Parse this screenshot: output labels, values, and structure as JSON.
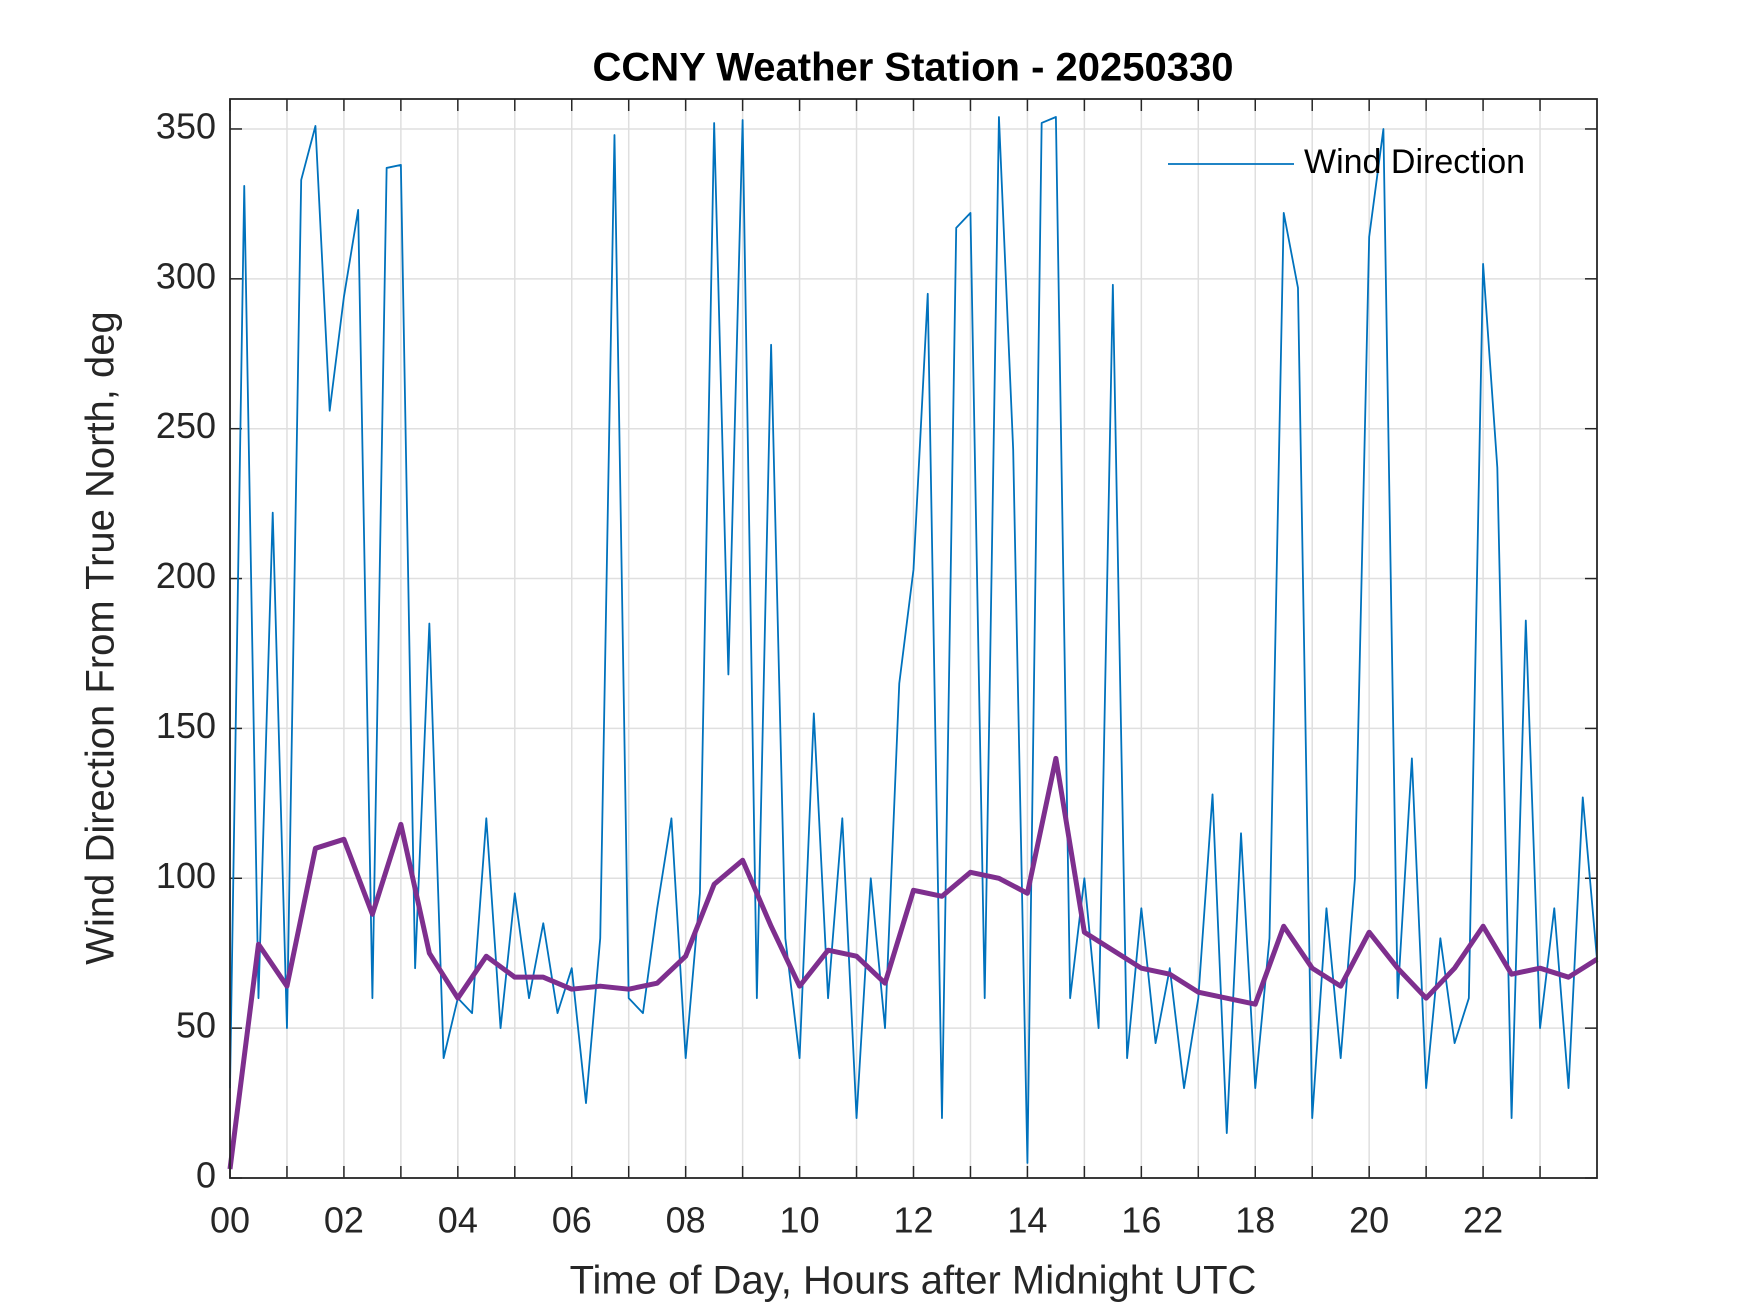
{
  "chart_data": {
    "type": "line",
    "title": "CCNY Weather Station - 20250330",
    "xlabel": "Time of Day, Hours after Midnight UTC",
    "ylabel": "Wind Direction From True North, deg",
    "xlim": [
      0,
      24
    ],
    "ylim": [
      0,
      360
    ],
    "xticks": [
      {
        "value": 0,
        "label": "00"
      },
      {
        "value": 2,
        "label": "02"
      },
      {
        "value": 4,
        "label": "04"
      },
      {
        "value": 6,
        "label": "06"
      },
      {
        "value": 8,
        "label": "08"
      },
      {
        "value": 10,
        "label": "10"
      },
      {
        "value": 12,
        "label": "12"
      },
      {
        "value": 14,
        "label": "14"
      },
      {
        "value": 16,
        "label": "16"
      },
      {
        "value": 18,
        "label": "18"
      },
      {
        "value": 20,
        "label": "20"
      },
      {
        "value": 22,
        "label": "22"
      }
    ],
    "xminorticks": [
      1,
      3,
      5,
      7,
      9,
      11,
      13,
      15,
      17,
      19,
      21,
      23
    ],
    "yticks": [
      0,
      50,
      100,
      150,
      200,
      250,
      300,
      350
    ],
    "grid": true,
    "legend": "northeast",
    "series": [
      {
        "name": "Wind Direction",
        "color": "#0072BD",
        "x": [
          0,
          0.25,
          0.5,
          0.75,
          1,
          1.25,
          1.5,
          1.75,
          2,
          2.25,
          2.5,
          2.75,
          3,
          3.25,
          3.5,
          3.75,
          4,
          4.25,
          4.5,
          4.75,
          5,
          5.25,
          5.5,
          5.75,
          6,
          6.25,
          6.5,
          6.75,
          7,
          7.25,
          7.5,
          7.75,
          8,
          8.25,
          8.5,
          8.75,
          9,
          9.25,
          9.5,
          9.75,
          10,
          10.25,
          10.5,
          10.75,
          11,
          11.25,
          11.5,
          11.75,
          12,
          12.25,
          12.5,
          12.75,
          13,
          13.25,
          13.5,
          13.75,
          14,
          14.25,
          14.5,
          14.75,
          15,
          15.25,
          15.5,
          15.75,
          16,
          16.25,
          16.5,
          16.75,
          17,
          17.25,
          17.5,
          17.75,
          18,
          18.25,
          18.5,
          18.75,
          19,
          19.25,
          19.5,
          19.75,
          20,
          20.25,
          20.5,
          20.75,
          21,
          21.25,
          21.5,
          21.75,
          22,
          22.25,
          22.5,
          22.75,
          23,
          23.25,
          23.5,
          23.75,
          24
        ],
        "values": [
          30,
          331,
          60,
          222,
          50,
          333,
          351,
          256,
          294,
          323,
          60,
          337,
          338,
          70,
          185,
          40,
          60,
          55,
          120,
          50,
          95,
          60,
          85,
          55,
          70,
          25,
          80,
          348,
          60,
          55,
          90,
          120,
          40,
          95,
          352,
          168,
          353,
          60,
          278,
          80,
          40,
          155,
          60,
          120,
          20,
          100,
          50,
          165,
          203,
          295,
          20,
          317,
          322,
          60,
          354,
          243,
          5,
          352,
          354,
          60,
          100,
          50,
          298,
          40,
          90,
          45,
          70,
          30,
          60,
          128,
          15,
          115,
          30,
          80,
          322,
          297,
          20,
          90,
          40,
          100,
          314,
          350,
          60,
          140,
          30,
          80,
          45,
          60,
          305,
          237,
          20,
          186,
          50,
          90,
          30,
          127,
          73
        ]
      },
      {
        "color": "#7E2F8E",
        "x": [
          0,
          0.5,
          1,
          1.5,
          2,
          2.5,
          3,
          3.5,
          4,
          4.5,
          5,
          5.5,
          6,
          6.5,
          7,
          7.5,
          8,
          8.5,
          9,
          9.5,
          10,
          10.5,
          11,
          11.5,
          12,
          12.5,
          13,
          13.5,
          14,
          14.5,
          15,
          15.5,
          16,
          16.5,
          17,
          17.5,
          18,
          18.5,
          19,
          19.5,
          20,
          20.5,
          21,
          21.5,
          22,
          22.5,
          23,
          23.5,
          24
        ],
        "values": [
          3,
          78,
          64,
          110,
          113,
          88,
          118,
          75,
          60,
          74,
          67,
          67,
          63,
          64,
          63,
          65,
          74,
          98,
          106,
          84,
          64,
          76,
          74,
          65,
          96,
          94,
          102,
          100,
          95,
          140,
          82,
          76,
          70,
          68,
          62,
          60,
          58,
          84,
          70,
          64,
          82,
          70,
          60,
          70,
          84,
          68,
          70,
          67,
          73
        ]
      }
    ]
  }
}
